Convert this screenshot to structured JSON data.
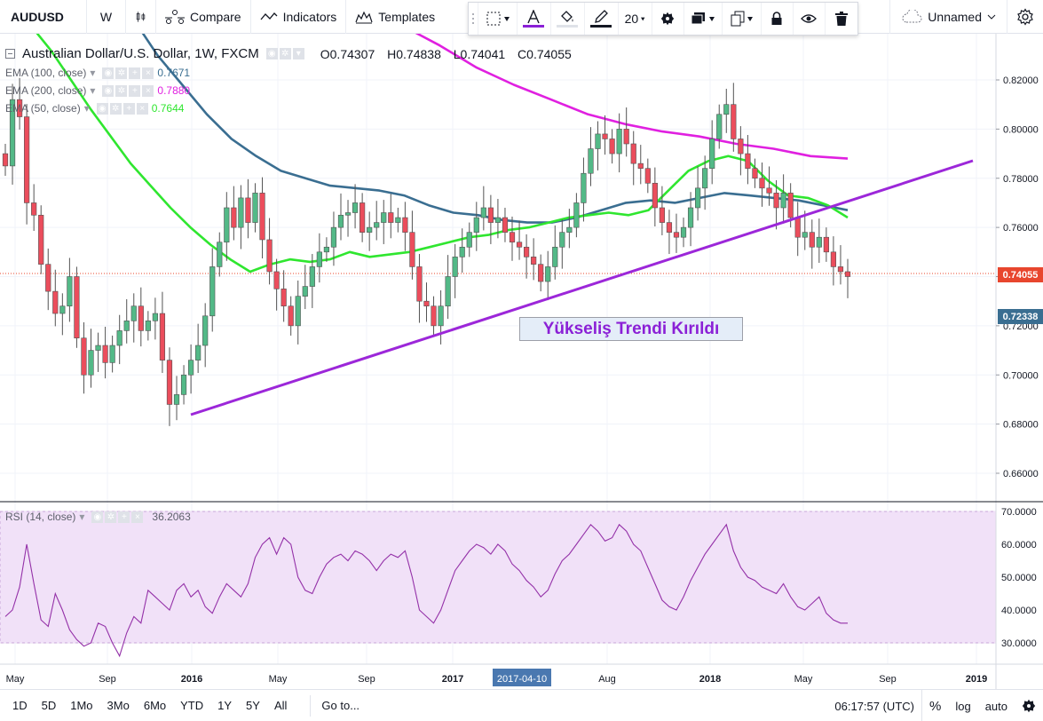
{
  "toolbar": {
    "symbol": "AUDUSD",
    "interval": "W",
    "compare_label": "Compare",
    "indicators_label": "Indicators",
    "templates_label": "Templates",
    "line_width": "20",
    "layout_name": "Unnamed",
    "text_color": "#8b20d6",
    "fill_color": "#dfe2e8",
    "line_color": "#131722"
  },
  "legend": {
    "title": "Australian Dollar/U.S. Dollar, 1W, FXCM",
    "open": "O0.74307",
    "high": "H0.74838",
    "low": "L0.74041",
    "close": "C0.74055",
    "ema100": {
      "label": "EMA (100, close)",
      "value": "0.7671",
      "color": "#3a6e91"
    },
    "ema200": {
      "label": "EMA (200, close)",
      "value": "0.7880",
      "color": "#e020e0"
    },
    "ema50": {
      "label": "EMA (50, close)",
      "value": "0.7644",
      "color": "#2fe62f"
    },
    "rsi": {
      "label": "RSI (14, close)",
      "value": "36.2063",
      "color": "#9431a8"
    }
  },
  "annotation": {
    "text": "Yükseliş Trendi Kırıldı",
    "color": "#8b20d6"
  },
  "price_tags": {
    "last": {
      "text": "0.74055",
      "color": "#e8462e"
    },
    "other": {
      "text": "0.72338",
      "color": "#3a6e91"
    }
  },
  "chart_data": {
    "type": "candlestick",
    "y_axis_ticks": [
      "0.82000",
      "0.80000",
      "0.78000",
      "0.76000",
      "0.74000",
      "0.72000",
      "0.70000",
      "0.68000",
      "0.66000"
    ],
    "rsi_axis_ticks": [
      "70.0000",
      "60.0000",
      "50.0000",
      "40.0000",
      "30.0000"
    ],
    "x_axis_ticks": [
      "May",
      "Sep",
      "2016",
      "May",
      "Sep",
      "2017",
      "2017-04-10",
      "Aug",
      "2018",
      "May",
      "Sep",
      "2019"
    ],
    "highlighted_x_tick": "2017-04-10",
    "candle_up_color": "#53b987",
    "candle_down_color": "#eb4d5c",
    "trendline_color": "#9c27d9",
    "rsi_band": [
      30,
      70
    ],
    "closes": [
      0.785,
      0.812,
      0.805,
      0.77,
      0.765,
      0.745,
      0.734,
      0.725,
      0.728,
      0.74,
      0.715,
      0.7,
      0.71,
      0.712,
      0.705,
      0.712,
      0.718,
      0.722,
      0.728,
      0.718,
      0.722,
      0.725,
      0.706,
      0.688,
      0.692,
      0.7,
      0.706,
      0.712,
      0.724,
      0.744,
      0.754,
      0.768,
      0.76,
      0.772,
      0.762,
      0.774,
      0.755,
      0.742,
      0.735,
      0.728,
      0.72,
      0.732,
      0.736,
      0.744,
      0.75,
      0.752,
      0.76,
      0.765,
      0.766,
      0.77,
      0.758,
      0.76,
      0.762,
      0.766,
      0.762,
      0.764,
      0.758,
      0.744,
      0.73,
      0.728,
      0.72,
      0.728,
      0.74,
      0.748,
      0.752,
      0.758,
      0.764,
      0.768,
      0.762,
      0.764,
      0.758,
      0.754,
      0.752,
      0.748,
      0.745,
      0.738,
      0.744,
      0.752,
      0.758,
      0.76,
      0.77,
      0.782,
      0.792,
      0.798,
      0.796,
      0.79,
      0.8,
      0.794,
      0.786,
      0.784,
      0.778,
      0.768,
      0.762,
      0.758,
      0.756,
      0.76,
      0.768,
      0.776,
      0.784,
      0.796,
      0.806,
      0.81,
      0.796,
      0.79,
      0.784,
      0.78,
      0.776,
      0.774,
      0.768,
      0.774,
      0.764,
      0.756,
      0.758,
      0.752,
      0.756,
      0.75,
      0.744,
      0.742,
      0.74
    ],
    "rsi": [
      38,
      40,
      47,
      60,
      48,
      37,
      35,
      45,
      40,
      34,
      31,
      29,
      30,
      36,
      35,
      30,
      26,
      33,
      38,
      36,
      46,
      44,
      42,
      40,
      46,
      48,
      44,
      46,
      41,
      39,
      44,
      48,
      46,
      44,
      48,
      56,
      60,
      62,
      57,
      62,
      60,
      50,
      46,
      45,
      50,
      54,
      56,
      57,
      55,
      58,
      57,
      55,
      52,
      55,
      57,
      56,
      58,
      50,
      40,
      38,
      36,
      40,
      46,
      52,
      55,
      58,
      60,
      59,
      57,
      60,
      58,
      54,
      52,
      49,
      47,
      44,
      46,
      51,
      55,
      57,
      60,
      63,
      66,
      64,
      61,
      62,
      66,
      64,
      60,
      58,
      53,
      48,
      43,
      41,
      40,
      44,
      49,
      53,
      57,
      60,
      63,
      66,
      58,
      53,
      50,
      49,
      47,
      46,
      45,
      48,
      44,
      41,
      40,
      42,
      44,
      39,
      37,
      36,
      36
    ],
    "ema50": [
      0.842,
      0.832,
      0.82,
      0.808,
      0.797,
      0.786,
      0.777,
      0.768,
      0.76,
      0.753,
      0.747,
      0.742,
      0.745,
      0.747,
      0.746,
      0.747,
      0.75,
      0.748,
      0.749,
      0.75,
      0.752,
      0.754,
      0.756,
      0.757,
      0.759,
      0.76,
      0.762,
      0.764,
      0.765,
      0.766,
      0.765,
      0.767,
      0.775,
      0.783,
      0.787,
      0.789,
      0.787,
      0.779,
      0.773,
      0.772,
      0.769,
      0.764
    ],
    "ema100": [
      0.858,
      0.845,
      0.83,
      0.818,
      0.806,
      0.796,
      0.789,
      0.783,
      0.78,
      0.777,
      0.776,
      0.775,
      0.773,
      0.769,
      0.766,
      0.765,
      0.763,
      0.762,
      0.762,
      0.764,
      0.767,
      0.77,
      0.771,
      0.77,
      0.772,
      0.774,
      0.773,
      0.772,
      0.771,
      0.769,
      0.767
    ],
    "ema200": [
      0.858,
      0.85,
      0.842,
      0.834,
      0.825,
      0.818,
      0.812,
      0.806,
      0.802,
      0.799,
      0.797,
      0.794,
      0.792,
      0.789,
      0.788
    ]
  },
  "bottom_bar": {
    "ranges": [
      "1D",
      "5D",
      "1Mo",
      "3Mo",
      "6Mo",
      "YTD",
      "1Y",
      "5Y",
      "All"
    ],
    "goto_label": "Go to...",
    "time": "06:17:57 (UTC)",
    "percent_label": "%",
    "log_label": "log",
    "auto_label": "auto"
  }
}
